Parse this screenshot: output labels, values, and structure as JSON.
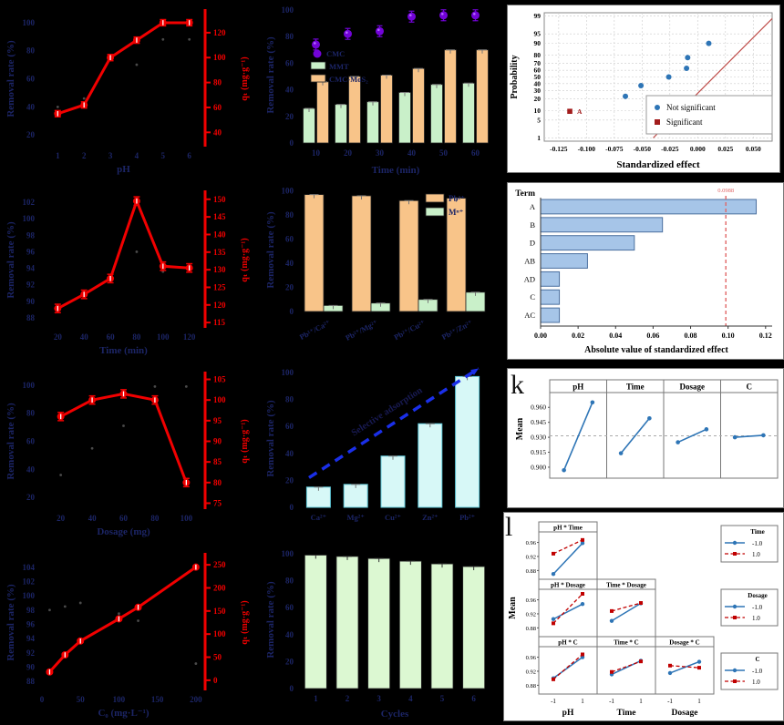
{
  "colors": {
    "navy": "#1c2566",
    "red": "#f10000",
    "purple": "#7203d8",
    "purpleHi": "#b366ff",
    "greenFill": "#c9f0c9",
    "orangeFill": "#f8c489",
    "barEdge": "#222222",
    "cyanFill": "#d7f8f7",
    "cyanEdge": "#5fc8d8",
    "paleGreen": "#dcf8d2",
    "blue": "#2e75b6",
    "darkRed": "#a21c1c",
    "fitRed": "#c0504d",
    "barBlue": "#a6c5e8",
    "barBlueEdge": "#4a6f9f",
    "arrowBlue": "#1a2fe8",
    "annNavy": "#181a52",
    "dotGray": "#4a4a4a",
    "errCap": "#777777",
    "grid": "#cccccc"
  },
  "panel_labels": {
    "k": "k",
    "l": "l"
  },
  "chart_data": [
    {
      "id": "a",
      "type": "dualline",
      "xlabel": "pH",
      "left_ylabel": "Removal rate (%)",
      "right_ylabel": "qₜ (mg·g⁻¹)",
      "x": [
        1,
        2,
        3,
        4,
        5,
        6
      ],
      "xticks": [
        1,
        2,
        3,
        4,
        5,
        6
      ],
      "xlim": [
        0.4,
        6.6
      ],
      "q": [
        55,
        62,
        100,
        114,
        128,
        128
      ],
      "err": 2.5,
      "left_ticks": [
        20,
        40,
        60,
        80,
        100
      ],
      "left_lim": [
        13,
        107
      ],
      "right_ticks": [
        40,
        60,
        80,
        100,
        120
      ],
      "right_lim": [
        30,
        136
      ],
      "dots": [
        [
          1,
          40
        ],
        [
          2,
          46
        ],
        [
          4,
          70
        ],
        [
          5,
          88
        ],
        [
          6,
          88
        ]
      ]
    },
    {
      "id": "c",
      "type": "dualline",
      "xlabel": "Time (min)",
      "left_ylabel": "Removal rate (%)",
      "right_ylabel": "qₜ (mg·g⁻¹)",
      "x": [
        20,
        40,
        60,
        80,
        100,
        120
      ],
      "xticks": [
        20,
        40,
        60,
        80,
        100,
        120
      ],
      "xlim": [
        8,
        132
      ],
      "q": [
        119,
        123,
        127.5,
        149.5,
        131,
        130.5
      ],
      "err": 1.2,
      "left_ticks": [
        88,
        90,
        92,
        94,
        96,
        98,
        100,
        102
      ],
      "left_lim": [
        87,
        103
      ],
      "right_ticks": [
        115,
        120,
        125,
        130,
        135,
        140,
        145,
        150
      ],
      "right_lim": [
        114,
        151.5
      ],
      "dots": [
        [
          20,
          89.3
        ],
        [
          40,
          90.8
        ],
        [
          60,
          92.7
        ],
        [
          80,
          96
        ],
        [
          100,
          93.6
        ]
      ]
    },
    {
      "id": "e",
      "type": "dualline",
      "xlabel": "Dosage (mg)",
      "left_ylabel": "Removal rate (%)",
      "right_ylabel": "qₜ (mg·g⁻¹)",
      "x": [
        20,
        40,
        60,
        80,
        100
      ],
      "xticks": [
        20,
        40,
        60,
        80,
        100
      ],
      "xlim": [
        8,
        112
      ],
      "q": [
        96,
        100,
        101.5,
        100,
        80
      ],
      "err": 1.0,
      "left_ticks": [
        20,
        40,
        60,
        80,
        100
      ],
      "left_lim": [
        13,
        107
      ],
      "right_ticks": [
        75,
        80,
        85,
        90,
        95,
        100,
        105
      ],
      "right_lim": [
        74,
        106
      ],
      "dots": [
        [
          20,
          36
        ],
        [
          40,
          55
        ],
        [
          60,
          71
        ],
        [
          80,
          99
        ],
        [
          100,
          99
        ]
      ]
    },
    {
      "id": "g",
      "type": "dualline",
      "xlabel": "C₀ (mg·L⁻¹)",
      "left_ylabel": "Removal rate (%)",
      "right_ylabel": "qₜ (mg·g⁻¹)",
      "x": [
        10,
        30,
        50,
        100,
        125,
        200
      ],
      "xticks": [
        0,
        50,
        100,
        150,
        200
      ],
      "xlim": [
        0,
        212
      ],
      "q": [
        18,
        55,
        85,
        133,
        158,
        245
      ],
      "err": 3,
      "left_ticks": [
        88,
        90,
        92,
        94,
        96,
        98,
        100,
        102,
        104
      ],
      "left_lim": [
        87,
        105.5
      ],
      "right_ticks": [
        0,
        50,
        100,
        150,
        200,
        250
      ],
      "right_lim": [
        -18,
        268
      ],
      "dots": [
        [
          10,
          98
        ],
        [
          30,
          98.5
        ],
        [
          50,
          99
        ],
        [
          100,
          97.5
        ],
        [
          125,
          96.5
        ],
        [
          200,
          90.5
        ]
      ]
    },
    {
      "id": "b",
      "type": "timebars",
      "xlabel": "Time (min)",
      "ylabel": "Removal rate (%)",
      "categories": [
        10,
        20,
        30,
        40,
        50,
        60
      ],
      "yticks": [
        0,
        20,
        40,
        60,
        80,
        100
      ],
      "ylim": [
        0,
        102
      ],
      "legend": [
        "CMC",
        "MMT",
        "CMC-MoS₂"
      ],
      "dots": [
        74,
        82,
        84,
        95,
        96,
        96
      ],
      "green_bars": [
        26,
        29,
        31,
        38,
        44,
        45
      ],
      "orange_bars": [
        46,
        50,
        51,
        56,
        70,
        70
      ]
    },
    {
      "id": "d",
      "type": "ionbars",
      "ylabel": "Removal rate (%)",
      "categories": [
        "Pb²⁺/Ca²⁺",
        "Pb²⁺/Mg²⁺",
        "Pb²⁺/Cu²⁺",
        "Pb²⁺/Zn²⁺"
      ],
      "yticks": [
        0,
        20,
        40,
        60,
        80,
        100
      ],
      "ylim": [
        0,
        102
      ],
      "legend": [
        "Pb²⁺",
        "Mⁿ⁺"
      ],
      "orange_bars": [
        97,
        96,
        92,
        94
      ],
      "green_bars": [
        5,
        7,
        10,
        16
      ]
    },
    {
      "id": "f",
      "type": "selectbars",
      "ylabel": "Removal rate (%)",
      "categories": [
        "Ca²⁺",
        "Mg²⁺",
        "Cu²⁺",
        "Zn²⁺",
        "Pb²⁺"
      ],
      "values": [
        15,
        17,
        38,
        62,
        97
      ],
      "yticks": [
        0,
        20,
        40,
        60,
        80,
        100
      ],
      "ylim": [
        0,
        102
      ],
      "annotation": "Selective adsorption"
    },
    {
      "id": "h",
      "type": "cyclebars",
      "xlabel": "Cycles",
      "ylabel": "Removal rate (%)",
      "categories": [
        1,
        2,
        3,
        4,
        5,
        6
      ],
      "values": [
        99,
        98,
        96.5,
        94.5,
        92.5,
        90.5
      ],
      "yticks": [
        0,
        20,
        40,
        60,
        80,
        100
      ],
      "ylim": [
        0,
        102
      ]
    },
    {
      "id": "i",
      "type": "probplot",
      "xlabel": "Standardized effect",
      "ylabel": "Probability",
      "xticks": [
        -0.125,
        -0.1,
        -0.075,
        -0.05,
        -0.025,
        0.0,
        0.025,
        0.05
      ],
      "xtick_labels": [
        "-0.125",
        "-0.100",
        "-0.075",
        "-0.050",
        "-0.025",
        "0.000",
        "0.025",
        "0.050"
      ],
      "yticks": [
        1,
        5,
        10,
        20,
        30,
        40,
        50,
        60,
        70,
        80,
        90,
        95,
        99
      ],
      "xlim": [
        -0.138,
        0.067
      ],
      "not_significant": [
        [
          -0.065,
          23
        ],
        [
          -0.051,
          37
        ],
        [
          -0.026,
          50
        ],
        [
          -0.01,
          63
        ],
        [
          -0.009,
          77
        ],
        [
          0.01,
          90
        ]
      ],
      "significant": [
        [
          -0.115,
          9.5
        ]
      ],
      "sig_label": "A",
      "fit_line": {
        "x1": -0.04,
        "p1": 1,
        "x2": 0.067,
        "p2": 98.7
      },
      "legend": [
        "Not significant",
        "Significant"
      ]
    },
    {
      "id": "j",
      "type": "pareto",
      "xlabel": "Absolute value of standardized effect",
      "ylabel": "Term",
      "categories": [
        "A",
        "B",
        "D",
        "AB",
        "AD",
        "C",
        "AC"
      ],
      "values": [
        0.115,
        0.065,
        0.05,
        0.025,
        0.01,
        0.01,
        0.01
      ],
      "xticks": [
        0,
        0.02,
        0.04,
        0.06,
        0.08,
        0.1,
        0.12
      ],
      "xtick_labels": [
        "0.00",
        "0.02",
        "0.04",
        "0.06",
        "0.08",
        "0.10",
        "0.12"
      ],
      "ref_value": 0.0988,
      "ref_label": "0.0988",
      "xlim": [
        0,
        0.1235
      ]
    },
    {
      "id": "k",
      "type": "maineffects",
      "ylabel": "Mean",
      "panels": [
        {
          "title": "pH",
          "values": [
            0.897,
            0.965
          ]
        },
        {
          "title": "Time",
          "values": [
            0.914,
            0.949
          ]
        },
        {
          "title": "Dosage",
          "values": [
            0.925,
            0.938
          ]
        },
        {
          "title": "C",
          "values": [
            0.93,
            0.932
          ]
        }
      ],
      "yticks": [
        0.9,
        0.915,
        0.93,
        0.945,
        0.96
      ],
      "ytick_labels": [
        "0.900",
        "0.915",
        "0.930",
        "0.945",
        "0.960"
      ],
      "ylim": [
        0.889,
        0.973
      ],
      "center": 0.9315
    },
    {
      "id": "l",
      "type": "interaction",
      "ylabel": "Mean",
      "xlabels": [
        "pH",
        "Time",
        "Dosage"
      ],
      "xticks": [
        "-1",
        "1"
      ],
      "ytick_labels": [
        "0.88",
        "0.92",
        "0.96"
      ],
      "yticks": [
        0.88,
        0.92,
        0.96
      ],
      "ylim": [
        0.855,
        0.99
      ],
      "cells": [
        {
          "row": 0,
          "col": 0,
          "title": "pH * Time",
          "blue": [
            0.87,
            0.958
          ],
          "red": [
            0.928,
            0.967
          ]
        },
        {
          "row": 1,
          "col": 0,
          "title": "pH * Dosage",
          "blue": [
            0.905,
            0.948
          ],
          "red": [
            0.893,
            0.977
          ]
        },
        {
          "row": 1,
          "col": 1,
          "title": "Time * Dosage",
          "blue": [
            0.9,
            0.95
          ],
          "red": [
            0.928,
            0.951
          ]
        },
        {
          "row": 2,
          "col": 0,
          "title": "pH * C",
          "blue": [
            0.9,
            0.96
          ],
          "red": [
            0.897,
            0.968
          ]
        },
        {
          "row": 2,
          "col": 1,
          "title": "Time * C",
          "blue": [
            0.911,
            0.95
          ],
          "red": [
            0.918,
            0.948
          ]
        },
        {
          "row": 2,
          "col": 2,
          "title": "Dosage * C",
          "blue": [
            0.915,
            0.947
          ],
          "red": [
            0.936,
            0.93
          ]
        }
      ],
      "legends": [
        {
          "title": "Time",
          "rows": [
            "-1.0",
            "1.0"
          ]
        },
        {
          "title": "Dosage",
          "rows": [
            "-1.0",
            "1.0"
          ]
        },
        {
          "title": "C",
          "rows": [
            "-1.0",
            "1.0"
          ]
        }
      ]
    }
  ]
}
